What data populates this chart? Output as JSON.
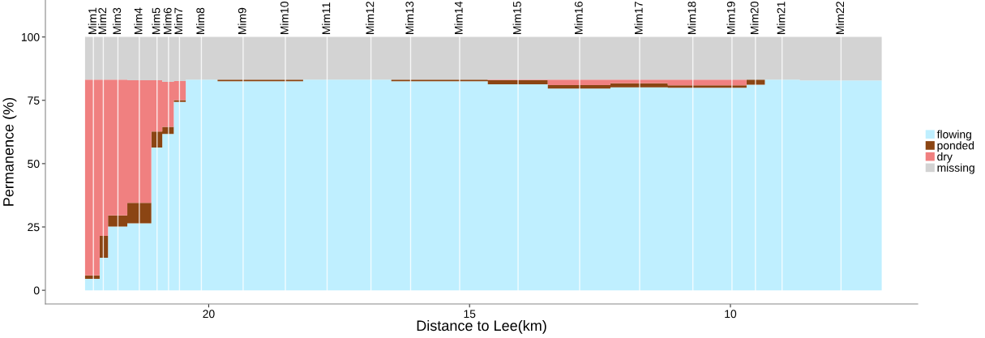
{
  "chart_data": {
    "type": "area",
    "stacked": true,
    "xlabel": "Distance to Lee(km)",
    "ylabel": "Permanence (%)",
    "x": [
      22.37,
      22.09,
      22.09,
      21.93,
      21.93,
      21.56,
      21.56,
      21.1,
      21.1,
      20.89,
      20.89,
      20.67,
      20.67,
      20.44,
      20.44,
      19.83,
      19.83,
      18.19,
      18.19,
      16.5,
      16.5,
      14.65,
      14.65,
      13.5,
      13.5,
      12.3,
      12.3,
      11.2,
      11.2,
      9.69,
      9.69,
      9.34,
      9.34,
      8.67,
      8.67,
      7.1
    ],
    "series": [
      {
        "name": "flowing",
        "color": "#bfefff",
        "values": [
          4.5,
          4.5,
          12.8,
          12.8,
          25.2,
          25.2,
          26.4,
          26.4,
          56.4,
          56.4,
          61.7,
          61.7,
          74.4,
          74.4,
          83.2,
          83.2,
          82.5,
          82.5,
          83.2,
          83.2,
          82.5,
          82.5,
          81.3,
          81.3,
          79.6,
          79.6,
          80.1,
          80.1,
          80.0,
          80.0,
          81.2,
          81.2,
          83.2,
          83.2,
          82.8,
          82.8
        ]
      },
      {
        "name": "ponded",
        "color": "#8b4513",
        "values": [
          1.4,
          1.4,
          8.7,
          8.7,
          4.4,
          4.4,
          8.1,
          8.1,
          6.3,
          6.3,
          2.8,
          2.8,
          0.7,
          0.7,
          0,
          0,
          0.7,
          0.7,
          0,
          0,
          0.7,
          0.7,
          1.6,
          1.6,
          1.4,
          1.4,
          1.6,
          1.6,
          0.9,
          0.9,
          2.0,
          2.0,
          0,
          0,
          0,
          0
        ]
      },
      {
        "name": "dry",
        "color": "#f08080",
        "values": [
          77.3,
          77.3,
          61.7,
          61.7,
          53.6,
          53.6,
          48.4,
          48.4,
          20.2,
          20.2,
          17.8,
          17.8,
          7.5,
          7.5,
          0,
          0,
          0,
          0,
          0,
          0,
          0,
          0,
          0.3,
          0.3,
          2.2,
          2.2,
          1.5,
          1.5,
          2.3,
          2.3,
          0,
          0,
          0,
          0,
          0,
          0
        ]
      },
      {
        "name": "missing",
        "color": "#d3d3d3",
        "values": [
          16.8,
          16.8,
          16.8,
          16.8,
          16.8,
          16.8,
          17.1,
          17.1,
          17.1,
          17.1,
          17.7,
          17.7,
          17.4,
          17.4,
          16.8,
          16.8,
          16.8,
          16.8,
          16.8,
          16.8,
          16.8,
          16.8,
          16.8,
          16.8,
          16.8,
          16.8,
          16.8,
          16.8,
          16.8,
          16.8,
          16.8,
          16.8,
          16.8,
          16.8,
          17.2,
          17.2
        ]
      }
    ],
    "ref_lines": [
      {
        "axis": "x",
        "value": 22.21,
        "label": "Mim1",
        "color": "#ffffff"
      },
      {
        "axis": "x",
        "value": 22.02,
        "label": "Mim2",
        "color": "#ffffff"
      },
      {
        "axis": "x",
        "value": 21.74,
        "label": "Mim3",
        "color": "#ffffff"
      },
      {
        "axis": "x",
        "value": 21.33,
        "label": "Mim4",
        "color": "#ffffff"
      },
      {
        "axis": "x",
        "value": 20.99,
        "label": "Mim5",
        "color": "#ffffff"
      },
      {
        "axis": "x",
        "value": 20.77,
        "label": "Mim6",
        "color": "#ffffff"
      },
      {
        "axis": "x",
        "value": 20.56,
        "label": "Mim7",
        "color": "#ffffff"
      },
      {
        "axis": "x",
        "value": 20.14,
        "label": "Mim8",
        "color": "#ffffff"
      },
      {
        "axis": "x",
        "value": 19.34,
        "label": "Mim9",
        "color": "#ffffff"
      },
      {
        "axis": "x",
        "value": 18.53,
        "label": "Mim10",
        "color": "#ffffff"
      },
      {
        "axis": "x",
        "value": 17.73,
        "label": "Mim11",
        "color": "#ffffff"
      },
      {
        "axis": "x",
        "value": 16.89,
        "label": "Mim12",
        "color": "#ffffff"
      },
      {
        "axis": "x",
        "value": 16.13,
        "label": "Mim13",
        "color": "#ffffff"
      },
      {
        "axis": "x",
        "value": 15.19,
        "label": "Mim14",
        "color": "#ffffff"
      },
      {
        "axis": "x",
        "value": 14.07,
        "label": "Mim15",
        "color": "#ffffff"
      },
      {
        "axis": "x",
        "value": 12.89,
        "label": "Mim16",
        "color": "#ffffff"
      },
      {
        "axis": "x",
        "value": 11.74,
        "label": "Mim17",
        "color": "#ffffff"
      },
      {
        "axis": "x",
        "value": 10.72,
        "label": "Mim18",
        "color": "#ffffff"
      },
      {
        "axis": "x",
        "value": 9.97,
        "label": "Mim19",
        "color": "#ffffff"
      },
      {
        "axis": "x",
        "value": 9.52,
        "label": "Mim20",
        "color": "#ffffff"
      },
      {
        "axis": "x",
        "value": 9.01,
        "label": "Mim21",
        "color": "#ffffff"
      },
      {
        "axis": "x",
        "value": 7.88,
        "label": "Mim22",
        "color": "#ffffff"
      }
    ],
    "xlim": [
      23.13,
      6.41
    ],
    "xticks": [
      20,
      15,
      10
    ],
    "ylim": [
      -5.4,
      114.6
    ],
    "yticks": [
      0,
      25,
      50,
      75,
      100
    ],
    "grid": false,
    "legend": "right"
  }
}
